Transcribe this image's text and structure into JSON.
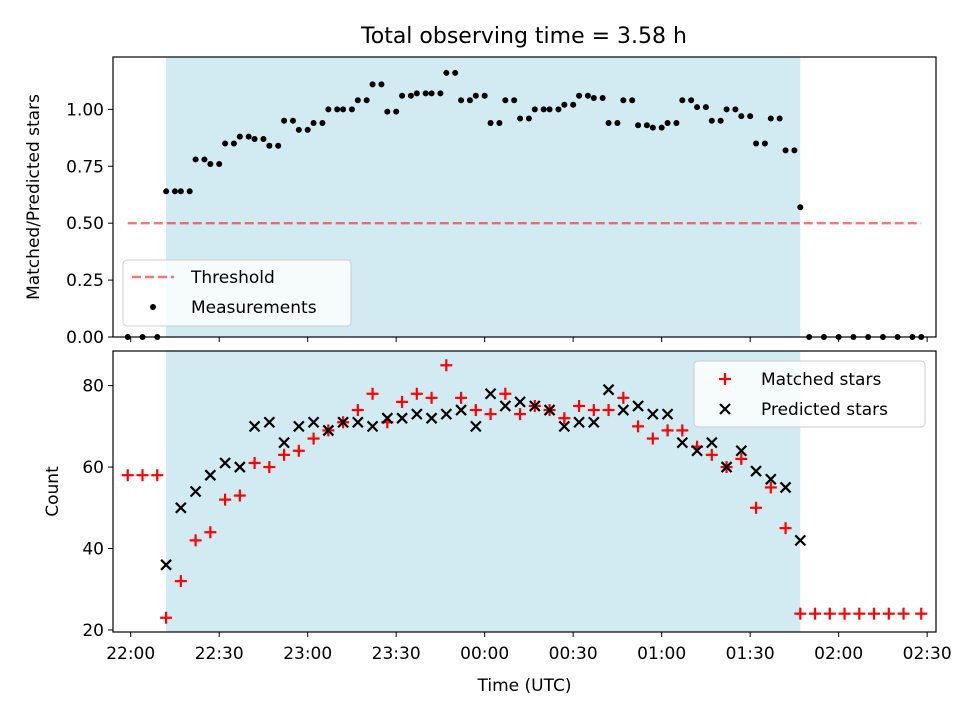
{
  "figure_title": "Total observing time = 3.58 h",
  "colors": {
    "shade": "#add8e6",
    "threshold": "#ff0000",
    "measurements": "#000000",
    "matched": "#ff0000",
    "predicted": "#000000"
  },
  "chart_data": [
    {
      "type": "scatter",
      "title": "Total observing time = 3.58 h",
      "ylabel": "Matched/Predicted stars",
      "xlabel": "",
      "xlim": [
        "21:54",
        "02:33"
      ],
      "ylim": [
        0,
        1.23
      ],
      "yticks": [
        0.0,
        0.25,
        0.5,
        0.75,
        1.0
      ],
      "ytick_labels": [
        "0.00",
        "0.25",
        "0.50",
        "0.75",
        "1.00"
      ],
      "xtick_labels": [
        "22:00",
        "22:30",
        "23:00",
        "23:30",
        "00:00",
        "00:30",
        "01:00",
        "01:30",
        "02:00",
        "02:30"
      ],
      "x_tick_labels_shown": false,
      "grid": false,
      "legend_position": "lower-left",
      "observing_window": [
        "22:12",
        "01:47"
      ],
      "threshold": {
        "name": "Threshold",
        "value": 0.5,
        "x_range": [
          "21:59",
          "02:28"
        ]
      },
      "series": [
        {
          "name": "Measurements",
          "marker": "dot",
          "x": [
            "21:59",
            "22:04",
            "22:09",
            "22:12",
            "22:15",
            "22:17",
            "22:20",
            "22:22",
            "22:25",
            "22:27",
            "22:30",
            "22:32",
            "22:35",
            "22:37",
            "22:40",
            "22:42",
            "22:45",
            "22:47",
            "22:50",
            "22:52",
            "22:55",
            "22:57",
            "23:00",
            "23:02",
            "23:05",
            "23:07",
            "23:10",
            "23:12",
            "23:15",
            "23:17",
            "23:20",
            "23:22",
            "23:25",
            "23:27",
            "23:30",
            "23:32",
            "23:35",
            "23:37",
            "23:40",
            "23:42",
            "23:45",
            "23:47",
            "23:50",
            "23:52",
            "23:55",
            "23:57",
            "00:00",
            "00:02",
            "00:05",
            "00:07",
            "00:10",
            "00:12",
            "00:15",
            "00:17",
            "00:20",
            "00:22",
            "00:25",
            "00:27",
            "00:30",
            "00:32",
            "00:35",
            "00:37",
            "00:40",
            "00:42",
            "00:45",
            "00:47",
            "00:50",
            "00:52",
            "00:55",
            "00:57",
            "01:00",
            "01:02",
            "01:05",
            "01:07",
            "01:10",
            "01:12",
            "01:15",
            "01:17",
            "01:20",
            "01:22",
            "01:25",
            "01:27",
            "01:30",
            "01:32",
            "01:35",
            "01:37",
            "01:40",
            "01:42",
            "01:45",
            "01:47",
            "01:50",
            "01:55",
            "02:00",
            "02:05",
            "02:10",
            "02:15",
            "02:20",
            "02:25",
            "02:28"
          ],
          "values": [
            0,
            0,
            0,
            0.64,
            0.64,
            0.64,
            0.64,
            0.78,
            0.78,
            0.76,
            0.76,
            0.85,
            0.85,
            0.88,
            0.88,
            0.87,
            0.87,
            0.84,
            0.84,
            0.95,
            0.95,
            0.91,
            0.91,
            0.94,
            0.94,
            1.0,
            1.0,
            1.0,
            1.0,
            1.04,
            1.04,
            1.11,
            1.11,
            0.99,
            0.99,
            1.06,
            1.06,
            1.07,
            1.07,
            1.07,
            1.07,
            1.16,
            1.16,
            1.04,
            1.04,
            1.06,
            1.06,
            0.94,
            0.94,
            1.04,
            1.04,
            0.96,
            0.96,
            1.0,
            1.0,
            1.0,
            1.0,
            1.02,
            1.02,
            1.06,
            1.06,
            1.05,
            1.05,
            0.94,
            0.94,
            1.04,
            1.04,
            0.93,
            0.93,
            0.92,
            0.92,
            0.94,
            0.94,
            1.04,
            1.04,
            1.01,
            1.01,
            0.95,
            0.95,
            1.0,
            1.0,
            0.97,
            0.97,
            0.85,
            0.85,
            0.96,
            0.96,
            0.82,
            0.82,
            0.57,
            0,
            0,
            0,
            0,
            0,
            0,
            0,
            0,
            0
          ]
        }
      ]
    },
    {
      "type": "scatter",
      "title": "",
      "xlabel": "Time (UTC)",
      "ylabel": "Count",
      "xlim": [
        "21:54",
        "02:33"
      ],
      "ylim": [
        19.5,
        88.5
      ],
      "yticks": [
        20,
        40,
        60,
        80
      ],
      "ytick_labels": [
        "20",
        "40",
        "60",
        "80"
      ],
      "xtick_labels": [
        "22:00",
        "22:30",
        "23:00",
        "23:30",
        "00:00",
        "00:30",
        "01:00",
        "01:30",
        "02:00",
        "02:30"
      ],
      "grid": false,
      "legend_position": "upper-right",
      "observing_window": [
        "22:12",
        "01:47"
      ],
      "series": [
        {
          "name": "Matched stars",
          "marker": "plus",
          "x": [
            "21:59",
            "22:04",
            "22:09",
            "22:12",
            "22:17",
            "22:22",
            "22:27",
            "22:32",
            "22:37",
            "22:42",
            "22:47",
            "22:52",
            "22:57",
            "23:02",
            "23:07",
            "23:12",
            "23:17",
            "23:22",
            "23:27",
            "23:32",
            "23:37",
            "23:42",
            "23:47",
            "23:52",
            "23:57",
            "00:02",
            "00:07",
            "00:12",
            "00:17",
            "00:22",
            "00:27",
            "00:32",
            "00:37",
            "00:42",
            "00:47",
            "00:52",
            "00:57",
            "01:02",
            "01:07",
            "01:12",
            "01:17",
            "01:22",
            "01:27",
            "01:32",
            "01:37",
            "01:42",
            "01:47",
            "01:52",
            "01:57",
            "02:02",
            "02:07",
            "02:12",
            "02:17",
            "02:22",
            "02:28"
          ],
          "values": [
            58,
            58,
            58,
            23,
            32,
            42,
            44,
            52,
            53,
            61,
            60,
            63,
            64,
            67,
            69,
            71,
            74,
            78,
            71,
            76,
            78,
            77,
            85,
            77,
            74,
            73,
            78,
            73,
            75,
            74,
            72,
            75,
            74,
            74,
            77,
            70,
            67,
            69,
            69,
            65,
            63,
            60,
            62,
            50,
            55,
            45,
            24,
            24,
            24,
            24,
            24,
            24,
            24,
            24,
            24
          ]
        },
        {
          "name": "Predicted stars",
          "marker": "x",
          "x": [
            "22:12",
            "22:17",
            "22:22",
            "22:27",
            "22:32",
            "22:37",
            "22:42",
            "22:47",
            "22:52",
            "22:57",
            "23:02",
            "23:07",
            "23:12",
            "23:17",
            "23:22",
            "23:27",
            "23:32",
            "23:37",
            "23:42",
            "23:47",
            "23:52",
            "23:57",
            "00:02",
            "00:07",
            "00:12",
            "00:17",
            "00:22",
            "00:27",
            "00:32",
            "00:37",
            "00:42",
            "00:47",
            "00:52",
            "00:57",
            "01:02",
            "01:07",
            "01:12",
            "01:17",
            "01:22",
            "01:27",
            "01:32",
            "01:37",
            "01:42",
            "01:47"
          ],
          "values": [
            36,
            50,
            54,
            58,
            61,
            60,
            70,
            71,
            66,
            70,
            71,
            69,
            71,
            71,
            70,
            72,
            72,
            73,
            72,
            73,
            74,
            70,
            78,
            75,
            76,
            75,
            74,
            70,
            71,
            71,
            79,
            74,
            75,
            73,
            73,
            66,
            64,
            66,
            60,
            64,
            59,
            57,
            55,
            42
          ]
        }
      ]
    }
  ]
}
